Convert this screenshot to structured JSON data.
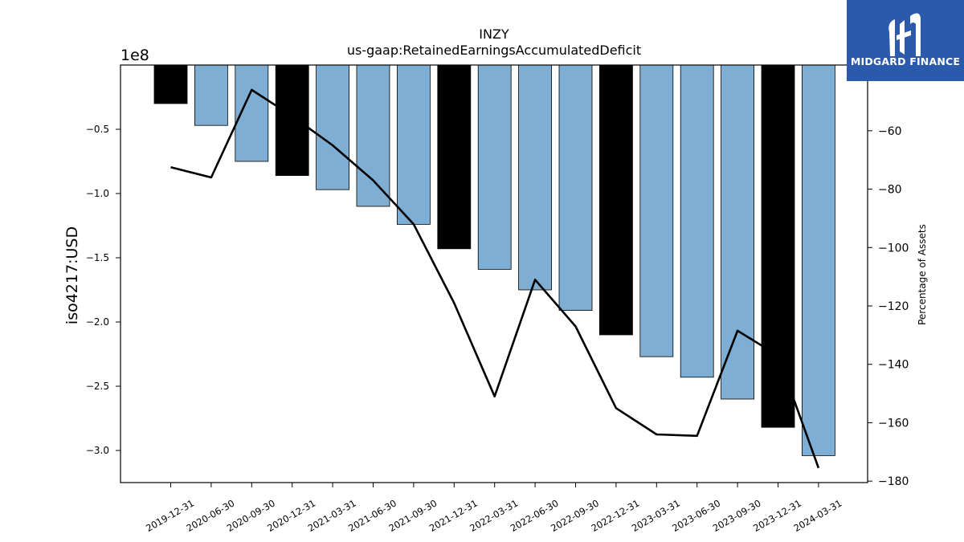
{
  "chart_data": {
    "type": "bar",
    "title": "INZY",
    "subtitle": "us-gaap:RetainedEarningsAccumulatedDeficit",
    "ylabel": "iso4217:USD",
    "y_offset_label": "1e8",
    "y2label": "Percentage of Assets",
    "categories": [
      "2019-12-31",
      "2020-06-30",
      "2020-09-30",
      "2020-12-31",
      "2021-03-31",
      "2021-06-30",
      "2021-09-30",
      "2021-12-31",
      "2022-03-31",
      "2022-06-30",
      "2022-09-30",
      "2022-12-31",
      "2023-03-31",
      "2023-06-30",
      "2023-09-30",
      "2023-12-31",
      "2024-03-31"
    ],
    "series": [
      {
        "type": "bar",
        "values": [
          -0.3,
          -0.47,
          -0.75,
          -0.86,
          -0.97,
          -1.1,
          -1.24,
          -1.43,
          -1.59,
          -1.75,
          -1.91,
          -2.1,
          -2.27,
          -2.43,
          -2.6,
          -2.82,
          -3.04
        ],
        "highlight_categories": [
          "2019-12-31",
          "2020-12-31",
          "2021-12-31",
          "2022-12-31",
          "2023-12-31"
        ]
      },
      {
        "type": "line",
        "axis": "right",
        "values": [
          -72.5,
          -76,
          -46,
          -55,
          -65,
          -77,
          -92,
          -119,
          -151,
          -111,
          -127,
          -155,
          -164,
          -164.5,
          -128.5,
          -137,
          -175.5
        ]
      }
    ],
    "ylim": [
      -3.25,
      0.0
    ],
    "yticks": [
      "-0.5",
      "-1.0",
      "-1.5",
      "-2.0",
      "-2.5",
      "-3.0"
    ],
    "y2lim": [
      -180.5,
      -37.5
    ],
    "y2ticks": [
      "-60",
      "-80",
      "-100",
      "-120",
      "-140",
      "-160",
      "-180"
    ],
    "colors": {
      "bar": "#7eaed3",
      "bar_highlight": "#000000",
      "line": "#000000"
    }
  },
  "logo": {
    "text": "MIDGARD FINANCE",
    "background": "#2b5aad"
  }
}
